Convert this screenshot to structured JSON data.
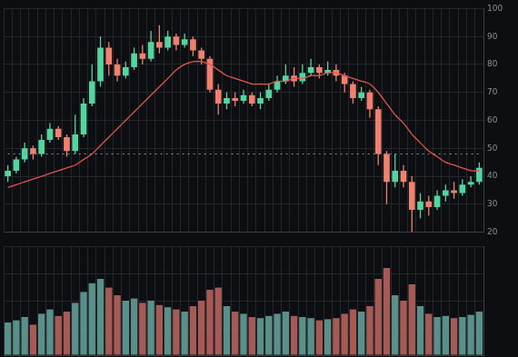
{
  "chart_data": [
    {
      "type": "candlestick",
      "categories": [
        null,
        null,
        null,
        null,
        null,
        null,
        null,
        null,
        null,
        null,
        null,
        null,
        null,
        null,
        null,
        null,
        null,
        null,
        null,
        null,
        null,
        null,
        null,
        null,
        null,
        null,
        null,
        null,
        null,
        null,
        null,
        null,
        null,
        null,
        null,
        null,
        null,
        null,
        null,
        null,
        null,
        null,
        null,
        null,
        null,
        null,
        null,
        null,
        null,
        null,
        null,
        null,
        null,
        null,
        null,
        null,
        null
      ],
      "series": [
        {
          "type": "candlestick",
          "open": [
            40,
            42,
            46,
            50,
            48,
            53,
            57,
            54,
            49,
            55,
            66,
            74,
            86,
            80,
            76,
            79,
            84,
            82,
            88,
            86,
            90,
            87,
            89,
            85,
            82,
            71,
            66,
            68,
            67,
            69,
            66,
            68,
            71,
            74,
            76,
            74,
            77,
            79,
            77,
            78,
            76,
            73,
            68,
            70,
            64,
            48,
            38,
            42,
            38,
            28,
            31,
            29,
            33,
            35,
            34,
            37,
            38
          ],
          "high": [
            44,
            47,
            52,
            51,
            55,
            59,
            58,
            55,
            62,
            68,
            80,
            90,
            88,
            82,
            81,
            86,
            87,
            92,
            94,
            92,
            91,
            91,
            90,
            86,
            83,
            73,
            70,
            70,
            71,
            70,
            70,
            73,
            76,
            80,
            79,
            80,
            82,
            80,
            81,
            80,
            77,
            74,
            72,
            71,
            65,
            49,
            48,
            44,
            40,
            34,
            33,
            35,
            37,
            38,
            39,
            40,
            45
          ],
          "low": [
            38,
            41,
            45,
            46,
            47,
            52,
            53,
            47,
            48,
            54,
            65,
            72,
            76,
            74,
            75,
            78,
            80,
            81,
            84,
            85,
            85,
            86,
            83,
            80,
            70,
            62,
            64,
            65,
            66,
            65,
            64,
            67,
            70,
            73,
            72,
            73,
            76,
            75,
            76,
            74,
            70,
            66,
            67,
            61,
            44,
            30,
            36,
            36,
            20,
            25,
            26,
            28,
            31,
            32,
            33,
            36,
            37
          ],
          "close": [
            42,
            46,
            50,
            48,
            53,
            57,
            54,
            49,
            55,
            66,
            74,
            86,
            80,
            76,
            79,
            84,
            82,
            88,
            86,
            90,
            87,
            89,
            85,
            82,
            71,
            66,
            68,
            67,
            69,
            66,
            68,
            71,
            74,
            76,
            74,
            77,
            79,
            77,
            78,
            76,
            73,
            68,
            70,
            64,
            48,
            38,
            42,
            38,
            28,
            31,
            29,
            33,
            35,
            34,
            37,
            38,
            43
          ],
          "colors": [
            "#56d4a0",
            "#56d4a0",
            "#56d4a0",
            "#f0806f",
            "#56d4a0",
            "#56d4a0",
            "#f0806f",
            "#f0806f",
            "#56d4a0",
            "#56d4a0",
            "#56d4a0",
            "#56d4a0",
            "#f0806f",
            "#f0806f",
            "#56d4a0",
            "#56d4a0",
            "#f0806f",
            "#56d4a0",
            "#f0806f",
            "#56d4a0",
            "#f0806f",
            "#56d4a0",
            "#f0806f",
            "#f0806f",
            "#f0806f",
            "#f0806f",
            "#56d4a0",
            "#f0806f",
            "#56d4a0",
            "#f0806f",
            "#56d4a0",
            "#56d4a0",
            "#56d4a0",
            "#56d4a0",
            "#f0806f",
            "#56d4a0",
            "#56d4a0",
            "#f0806f",
            "#56d4a0",
            "#f0806f",
            "#f0806f",
            "#f0806f",
            "#56d4a0",
            "#f0806f",
            "#f0806f",
            "#f0806f",
            "#56d4a0",
            "#f0806f",
            "#f0806f",
            "#56d4a0",
            "#f0806f",
            "#56d4a0",
            "#56d4a0",
            "#f0806f",
            "#56d4a0",
            "#56d4a0",
            "#56d4a0"
          ]
        },
        {
          "type": "line",
          "color": "#e0564f",
          "line_style": "solid",
          "values": [
            36,
            37,
            38,
            39,
            40,
            41,
            42,
            43,
            44,
            46,
            48,
            51,
            54,
            57,
            60,
            63,
            66,
            69,
            72,
            75,
            78,
            80,
            81,
            81,
            80,
            78,
            76,
            75,
            74,
            73,
            73,
            73,
            74,
            74,
            75,
            75,
            76,
            76,
            77,
            77,
            76,
            75,
            74,
            73,
            70,
            66,
            62,
            59,
            55,
            52,
            49,
            47,
            45,
            44,
            43,
            42,
            42
          ]
        },
        {
          "type": "line",
          "color": "#8d949c",
          "line_style": "dotted",
          "values": [
            48,
            48,
            48,
            48,
            48,
            48,
            48,
            48,
            48,
            48,
            48,
            48,
            48,
            48,
            48,
            48,
            48,
            48,
            48,
            48,
            48,
            48,
            48,
            48,
            48,
            48,
            48,
            48,
            48,
            48,
            48,
            48,
            48,
            48,
            48,
            48,
            48,
            48,
            48,
            48,
            48,
            48,
            48,
            48,
            48,
            48,
            48,
            48,
            48,
            48,
            48,
            48,
            48,
            48,
            48,
            48,
            48
          ]
        }
      ],
      "ylim": [
        20,
        100
      ],
      "yticks": [
        20,
        30,
        40,
        50,
        60,
        70,
        80,
        90,
        100
      ],
      "grid": true,
      "tick_labels": "y"
    },
    {
      "type": "bar",
      "categories": [
        null,
        null,
        null,
        null,
        null,
        null,
        null,
        null,
        null,
        null,
        null,
        null,
        null,
        null,
        null,
        null,
        null,
        null,
        null,
        null,
        null,
        null,
        null,
        null,
        null,
        null,
        null,
        null,
        null,
        null,
        null,
        null,
        null,
        null,
        null,
        null,
        null,
        null,
        null,
        null,
        null,
        null,
        null,
        null,
        null,
        null,
        null,
        null,
        null,
        null,
        null,
        null,
        null,
        null,
        null,
        null,
        null
      ],
      "series": [
        {
          "type": "bar",
          "values": [
            30,
            32,
            35,
            28,
            38,
            42,
            36,
            40,
            48,
            58,
            66,
            70,
            62,
            55,
            50,
            52,
            48,
            50,
            46,
            44,
            42,
            40,
            45,
            50,
            60,
            62,
            45,
            40,
            38,
            35,
            34,
            36,
            38,
            40,
            36,
            35,
            34,
            32,
            33,
            34,
            38,
            42,
            40,
            45,
            70,
            80,
            55,
            50,
            65,
            45,
            38,
            35,
            36,
            34,
            35,
            37,
            40
          ],
          "colors": [
            "#5b8f8a",
            "#5b8f8a",
            "#5b8f8a",
            "#a65a55",
            "#5b8f8a",
            "#5b8f8a",
            "#a65a55",
            "#a65a55",
            "#5b8f8a",
            "#5b8f8a",
            "#5b8f8a",
            "#5b8f8a",
            "#a65a55",
            "#a65a55",
            "#5b8f8a",
            "#5b8f8a",
            "#a65a55",
            "#5b8f8a",
            "#a65a55",
            "#5b8f8a",
            "#a65a55",
            "#5b8f8a",
            "#a65a55",
            "#a65a55",
            "#a65a55",
            "#a65a55",
            "#5b8f8a",
            "#a65a55",
            "#5b8f8a",
            "#a65a55",
            "#5b8f8a",
            "#5b8f8a",
            "#5b8f8a",
            "#5b8f8a",
            "#a65a55",
            "#5b8f8a",
            "#5b8f8a",
            "#a65a55",
            "#5b8f8a",
            "#a65a55",
            "#a65a55",
            "#a65a55",
            "#5b8f8a",
            "#a65a55",
            "#a65a55",
            "#a65a55",
            "#5b8f8a",
            "#a65a55",
            "#a65a55",
            "#5b8f8a",
            "#a65a55",
            "#5b8f8a",
            "#5b8f8a",
            "#a65a55",
            "#5b8f8a",
            "#5b8f8a",
            "#5b8f8a"
          ]
        }
      ],
      "ylim": [
        0,
        100
      ],
      "yticks": [
        0,
        25,
        50,
        75,
        100
      ],
      "grid": true,
      "tick_labels": false
    }
  ]
}
